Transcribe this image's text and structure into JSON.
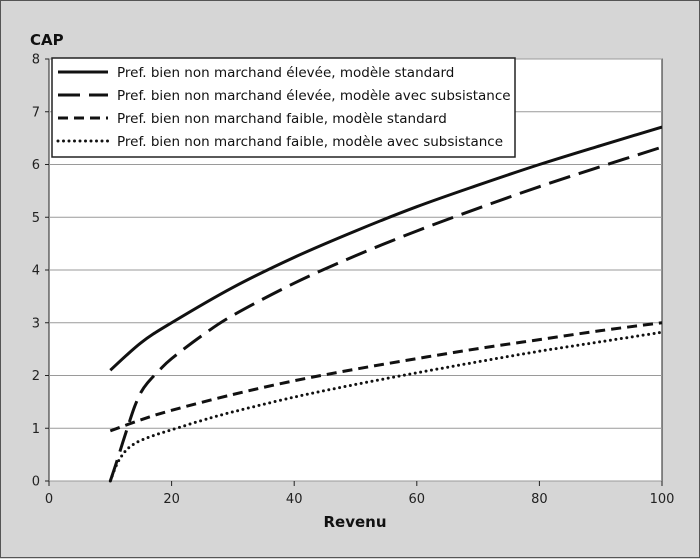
{
  "chart_data": {
    "type": "line",
    "ylabel": "CAP",
    "xlabel": "Revenu",
    "xlim": [
      0,
      100
    ],
    "ylim": [
      0,
      8
    ],
    "xticks": [
      0,
      20,
      40,
      60,
      80,
      100
    ],
    "yticks": [
      0,
      1,
      2,
      3,
      4,
      5,
      6,
      7,
      8
    ],
    "grid": "horizontal",
    "legend_position": "top",
    "series": [
      {
        "name": "Pref. bien non marchand élevée, modèle standard",
        "style": "solid",
        "color": "#111111",
        "x": [
          10,
          15,
          20,
          30,
          40,
          50,
          60,
          70,
          80,
          90,
          100
        ],
        "y": [
          2.1,
          2.62,
          3.0,
          3.67,
          4.24,
          4.74,
          5.2,
          5.61,
          6.0,
          6.36,
          6.71
        ]
      },
      {
        "name": "Pref. bien non marchand élevée, modèle avec subsistance",
        "style": "longdash",
        "color": "#111111",
        "x": [
          10,
          11,
          12,
          13,
          14,
          15,
          16,
          18,
          20,
          25,
          30,
          40,
          50,
          60,
          70,
          80,
          90,
          100
        ],
        "y": [
          0.0,
          0.35,
          0.72,
          1.08,
          1.42,
          1.68,
          1.85,
          2.1,
          2.32,
          2.76,
          3.14,
          3.75,
          4.27,
          4.74,
          5.17,
          5.58,
          5.96,
          6.33
        ]
      },
      {
        "name": "Pref. bien non marchand faible, modèle standard",
        "style": "dash",
        "color": "#111111",
        "x": [
          10,
          15,
          20,
          30,
          40,
          50,
          60,
          70,
          80,
          90,
          100
        ],
        "y": [
          0.95,
          1.16,
          1.34,
          1.64,
          1.9,
          2.12,
          2.32,
          2.51,
          2.68,
          2.85,
          3.0
        ]
      },
      {
        "name": "Pref. bien non marchand faible, modèle avec subsistance",
        "style": "dotted",
        "color": "#111111",
        "x": [
          10,
          11,
          12,
          13,
          14,
          15,
          17,
          20,
          25,
          30,
          40,
          50,
          60,
          70,
          80,
          90,
          100
        ],
        "y": [
          0.0,
          0.3,
          0.5,
          0.63,
          0.71,
          0.77,
          0.86,
          0.97,
          1.15,
          1.31,
          1.59,
          1.83,
          2.05,
          2.26,
          2.46,
          2.64,
          2.82
        ]
      }
    ]
  }
}
